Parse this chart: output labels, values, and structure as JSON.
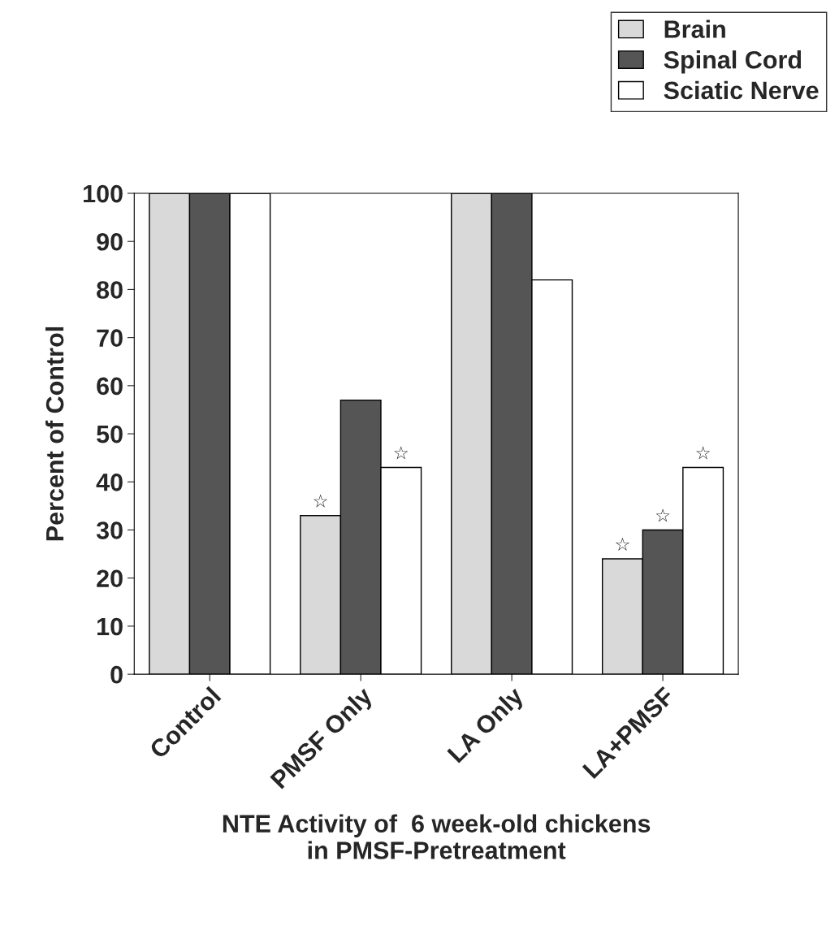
{
  "chart_data": {
    "type": "bar",
    "xlabel": "NTE Activity of  6 week-old chickens\nin PMSF-Pretreatment",
    "ylabel": "Percent of Control",
    "categories": [
      "Control",
      "PMSF Only",
      "LA Only",
      "LA+PMSF"
    ],
    "series": [
      {
        "name": "Brain",
        "color": "#d9d9d9",
        "values": [
          100,
          33,
          100,
          24
        ],
        "value_labels": [
          null,
          "☆",
          null,
          "☆"
        ]
      },
      {
        "name": "Spinal Cord",
        "color": "#555555",
        "values": [
          100,
          57,
          100,
          30
        ],
        "value_labels": [
          null,
          null,
          null,
          "☆"
        ]
      },
      {
        "name": "Sciatic Nerve",
        "color": "#ffffff",
        "values": [
          100,
          43,
          82,
          43
        ],
        "value_labels": [
          null,
          "☆",
          null,
          "☆"
        ]
      }
    ],
    "ylim": [
      0,
      100
    ],
    "yticks": [
      0,
      10,
      20,
      30,
      40,
      50,
      60,
      70,
      80,
      90,
      100
    ],
    "grid": false,
    "legend": "top right"
  }
}
